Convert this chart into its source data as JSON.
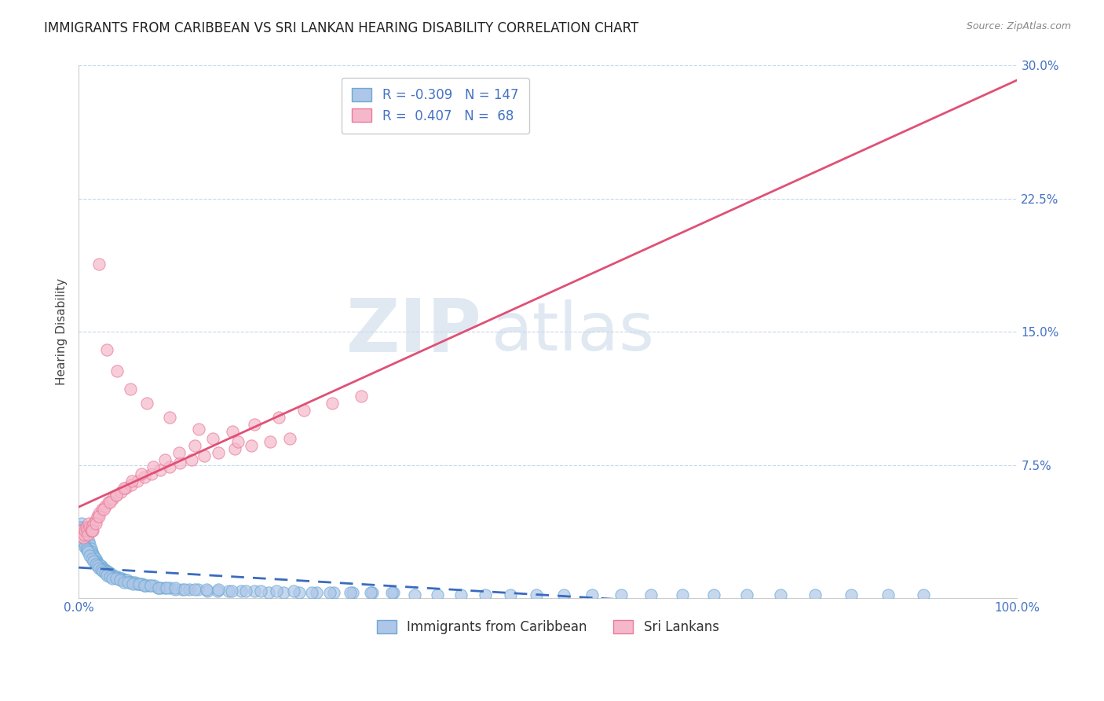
{
  "title": "IMMIGRANTS FROM CARIBBEAN VS SRI LANKAN HEARING DISABILITY CORRELATION CHART",
  "source": "Source: ZipAtlas.com",
  "ylabel": "Hearing Disability",
  "xlim": [
    0,
    1.0
  ],
  "ylim": [
    0,
    0.3
  ],
  "yticks": [
    0.0,
    0.075,
    0.15,
    0.225,
    0.3
  ],
  "ytick_labels": [
    "",
    "7.5%",
    "15.0%",
    "22.5%",
    "30.0%"
  ],
  "xtick_labels": [
    "0.0%",
    "100.0%"
  ],
  "xticks": [
    0.0,
    1.0
  ],
  "series": [
    {
      "name": "Immigrants from Caribbean",
      "R": -0.309,
      "N": 147,
      "dot_color": "#aec6e8",
      "edge_color": "#6aaad4",
      "line_color": "#3a6bbf",
      "line_style": "--"
    },
    {
      "name": "Sri Lankans",
      "R": 0.407,
      "N": 68,
      "dot_color": "#f5b8cb",
      "edge_color": "#e87a9a",
      "line_color": "#e05075",
      "line_style": "-"
    }
  ],
  "grid_color": "#c8d8e8",
  "bg_color": "#ffffff",
  "title_fontsize": 12,
  "tick_fontsize": 11,
  "legend_fontsize": 12,
  "watermark_text": "ZIPatlas",
  "watermark_color": "#c8d8e8",
  "caribbean_x": [
    0.001,
    0.002,
    0.003,
    0.004,
    0.005,
    0.006,
    0.007,
    0.008,
    0.009,
    0.01,
    0.011,
    0.012,
    0.013,
    0.014,
    0.015,
    0.016,
    0.017,
    0.018,
    0.019,
    0.02,
    0.021,
    0.022,
    0.023,
    0.024,
    0.025,
    0.026,
    0.027,
    0.028,
    0.029,
    0.03,
    0.031,
    0.032,
    0.033,
    0.034,
    0.035,
    0.036,
    0.037,
    0.038,
    0.039,
    0.04,
    0.041,
    0.042,
    0.043,
    0.045,
    0.046,
    0.047,
    0.049,
    0.05,
    0.052,
    0.054,
    0.056,
    0.058,
    0.06,
    0.062,
    0.064,
    0.066,
    0.068,
    0.07,
    0.073,
    0.076,
    0.08,
    0.084,
    0.088,
    0.092,
    0.097,
    0.103,
    0.11,
    0.118,
    0.127,
    0.137,
    0.148,
    0.16,
    0.173,
    0.187,
    0.202,
    0.218,
    0.235,
    0.253,
    0.272,
    0.292,
    0.313,
    0.335,
    0.358,
    0.382,
    0.407,
    0.433,
    0.46,
    0.488,
    0.517,
    0.547,
    0.578,
    0.61,
    0.643,
    0.677,
    0.712,
    0.748,
    0.785,
    0.823,
    0.862,
    0.9,
    0.001,
    0.002,
    0.003,
    0.004,
    0.005,
    0.006,
    0.007,
    0.008,
    0.009,
    0.01,
    0.012,
    0.014,
    0.016,
    0.018,
    0.02,
    0.022,
    0.024,
    0.026,
    0.028,
    0.03,
    0.033,
    0.036,
    0.04,
    0.044,
    0.048,
    0.053,
    0.058,
    0.064,
    0.07,
    0.077,
    0.085,
    0.094,
    0.103,
    0.113,
    0.124,
    0.136,
    0.149,
    0.163,
    0.178,
    0.194,
    0.211,
    0.229,
    0.248,
    0.268,
    0.289,
    0.311,
    0.334
  ],
  "caribbean_y": [
    0.038,
    0.035,
    0.042,
    0.032,
    0.04,
    0.038,
    0.036,
    0.034,
    0.03,
    0.028,
    0.032,
    0.03,
    0.028,
    0.026,
    0.025,
    0.024,
    0.023,
    0.022,
    0.021,
    0.02,
    0.019,
    0.019,
    0.018,
    0.018,
    0.017,
    0.017,
    0.016,
    0.016,
    0.015,
    0.015,
    0.015,
    0.014,
    0.014,
    0.013,
    0.013,
    0.013,
    0.013,
    0.012,
    0.012,
    0.012,
    0.012,
    0.011,
    0.011,
    0.011,
    0.011,
    0.01,
    0.01,
    0.01,
    0.01,
    0.009,
    0.009,
    0.009,
    0.009,
    0.008,
    0.008,
    0.008,
    0.008,
    0.007,
    0.007,
    0.007,
    0.007,
    0.006,
    0.006,
    0.006,
    0.006,
    0.005,
    0.005,
    0.005,
    0.005,
    0.004,
    0.004,
    0.004,
    0.004,
    0.004,
    0.003,
    0.003,
    0.003,
    0.003,
    0.003,
    0.003,
    0.003,
    0.003,
    0.002,
    0.002,
    0.002,
    0.002,
    0.002,
    0.002,
    0.002,
    0.002,
    0.002,
    0.002,
    0.002,
    0.002,
    0.002,
    0.002,
    0.002,
    0.002,
    0.002,
    0.002,
    0.04,
    0.038,
    0.036,
    0.034,
    0.032,
    0.031,
    0.029,
    0.028,
    0.027,
    0.026,
    0.024,
    0.022,
    0.021,
    0.019,
    0.018,
    0.017,
    0.016,
    0.015,
    0.014,
    0.013,
    0.012,
    0.011,
    0.011,
    0.01,
    0.009,
    0.009,
    0.008,
    0.008,
    0.007,
    0.007,
    0.006,
    0.006,
    0.006,
    0.005,
    0.005,
    0.005,
    0.005,
    0.004,
    0.004,
    0.004,
    0.004,
    0.004,
    0.003,
    0.003,
    0.003,
    0.003,
    0.003
  ],
  "srilanka_x": [
    0.001,
    0.002,
    0.003,
    0.004,
    0.005,
    0.006,
    0.007,
    0.008,
    0.009,
    0.01,
    0.011,
    0.012,
    0.013,
    0.014,
    0.015,
    0.016,
    0.018,
    0.02,
    0.022,
    0.025,
    0.028,
    0.032,
    0.036,
    0.04,
    0.045,
    0.05,
    0.056,
    0.063,
    0.07,
    0.078,
    0.087,
    0.097,
    0.108,
    0.12,
    0.134,
    0.149,
    0.166,
    0.184,
    0.204,
    0.225,
    0.014,
    0.018,
    0.022,
    0.027,
    0.033,
    0.04,
    0.048,
    0.057,
    0.067,
    0.079,
    0.092,
    0.107,
    0.124,
    0.143,
    0.164,
    0.187,
    0.213,
    0.24,
    0.27,
    0.301,
    0.022,
    0.03,
    0.041,
    0.055,
    0.073,
    0.097,
    0.128,
    0.17
  ],
  "srilanka_y": [
    0.038,
    0.036,
    0.035,
    0.038,
    0.034,
    0.036,
    0.038,
    0.04,
    0.038,
    0.036,
    0.042,
    0.04,
    0.038,
    0.04,
    0.038,
    0.042,
    0.044,
    0.046,
    0.048,
    0.05,
    0.052,
    0.054,
    0.056,
    0.058,
    0.06,
    0.062,
    0.064,
    0.066,
    0.068,
    0.07,
    0.072,
    0.074,
    0.076,
    0.078,
    0.08,
    0.082,
    0.084,
    0.086,
    0.088,
    0.09,
    0.038,
    0.042,
    0.046,
    0.05,
    0.054,
    0.058,
    0.062,
    0.066,
    0.07,
    0.074,
    0.078,
    0.082,
    0.086,
    0.09,
    0.094,
    0.098,
    0.102,
    0.106,
    0.11,
    0.114,
    0.188,
    0.14,
    0.128,
    0.118,
    0.11,
    0.102,
    0.095,
    0.088
  ]
}
